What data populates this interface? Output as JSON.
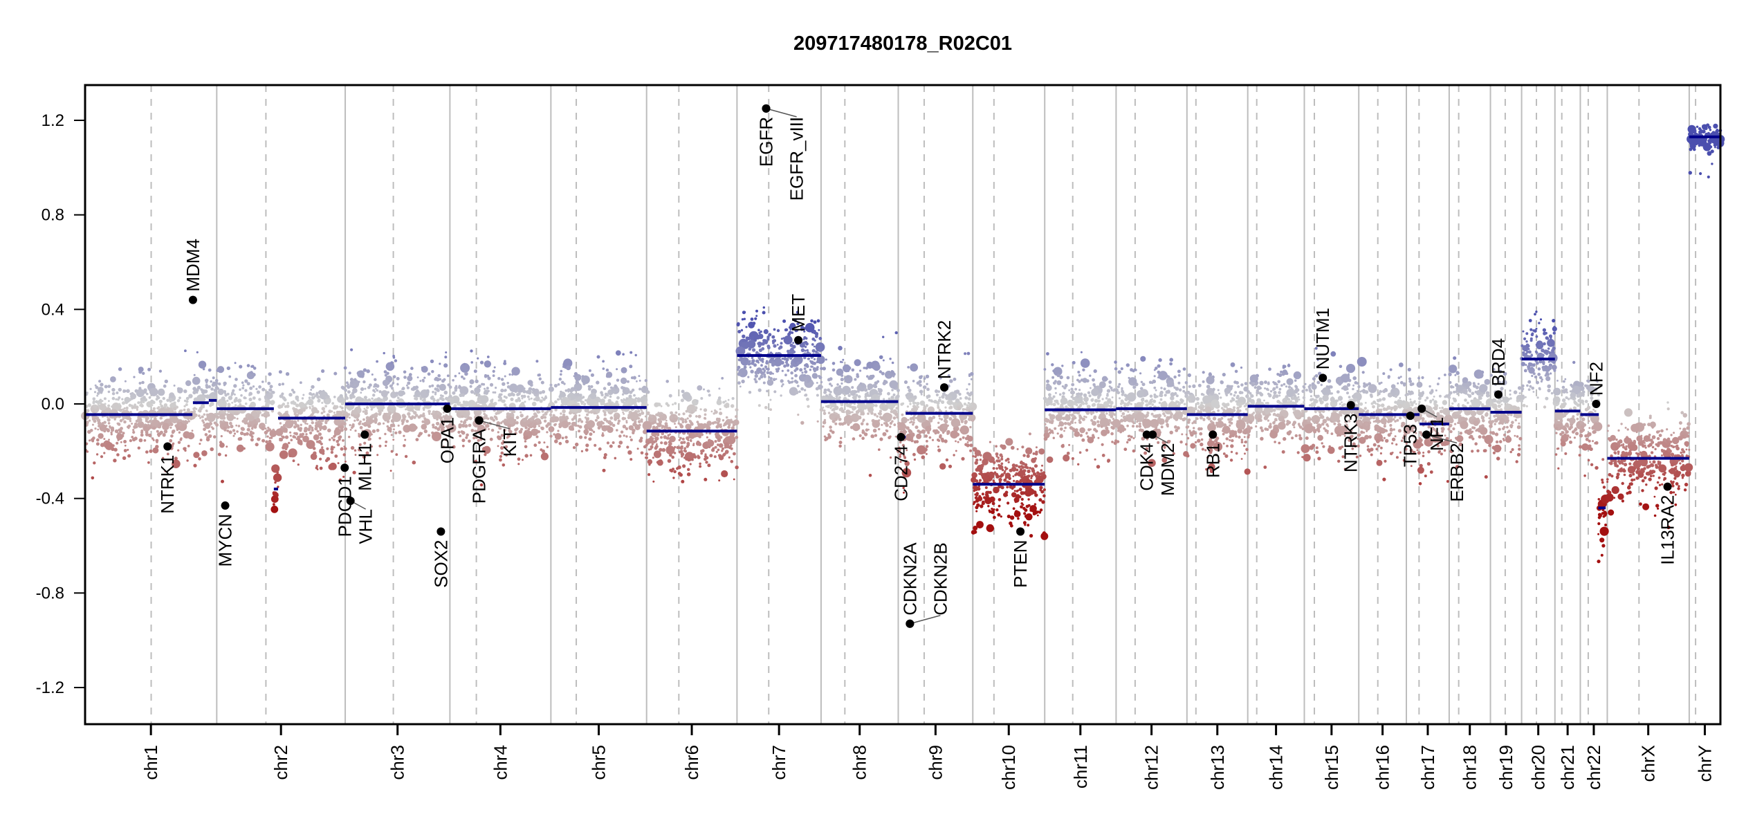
{
  "chart_data": {
    "type": "scatter",
    "title": "209717480178_R02C01",
    "xlabel": "",
    "ylabel": "",
    "ylim": [
      -1.35,
      1.35
    ],
    "yticks": [
      {
        "value": 1.2,
        "label": "1.2"
      },
      {
        "value": 0.8,
        "label": "0.8"
      },
      {
        "value": 0.4,
        "label": "0.4"
      },
      {
        "value": 0.0,
        "label": "0.0"
      },
      {
        "value": -0.4,
        "label": "-0.4"
      },
      {
        "value": -0.8,
        "label": "-0.8"
      },
      {
        "value": -1.2,
        "label": "-1.2"
      }
    ],
    "grid": false,
    "x_units": "Mb (genomic position within chromosome)",
    "chromosomes": [
      {
        "name": "chr1",
        "length": 249,
        "centromere": 125
      },
      {
        "name": "chr2",
        "length": 243,
        "centromere": 93
      },
      {
        "name": "chr3",
        "length": 198,
        "centromere": 91
      },
      {
        "name": "chr4",
        "length": 191,
        "centromere": 50
      },
      {
        "name": "chr5",
        "length": 181,
        "centromere": 48
      },
      {
        "name": "chr6",
        "length": 171,
        "centromere": 61
      },
      {
        "name": "chr7",
        "length": 159,
        "centromere": 60
      },
      {
        "name": "chr8",
        "length": 146,
        "centromere": 45
      },
      {
        "name": "chr9",
        "length": 141,
        "centromere": 49
      },
      {
        "name": "chr10",
        "length": 136,
        "centromere": 40
      },
      {
        "name": "chr11",
        "length": 135,
        "centromere": 53
      },
      {
        "name": "chr12",
        "length": 134,
        "centromere": 36
      },
      {
        "name": "chr13",
        "length": 115,
        "centromere": 17
      },
      {
        "name": "chr14",
        "length": 107,
        "centromere": 17
      },
      {
        "name": "chr15",
        "length": 103,
        "centromere": 19
      },
      {
        "name": "chr16",
        "length": 90,
        "centromere": 36
      },
      {
        "name": "chr17",
        "length": 81,
        "centromere": 24
      },
      {
        "name": "chr18",
        "length": 78,
        "centromere": 18
      },
      {
        "name": "chr19",
        "length": 59,
        "centromere": 28
      },
      {
        "name": "chr20",
        "length": 63,
        "centromere": 28
      },
      {
        "name": "chr21",
        "length": 48,
        "centromere": 13
      },
      {
        "name": "chr22",
        "length": 51,
        "centromere": 15
      },
      {
        "name": "chrX",
        "length": 155,
        "centromere": 60
      },
      {
        "name": "chrY",
        "length": 59,
        "centromere": 12
      }
    ],
    "segments": [
      {
        "chr": "chr1",
        "start": 0,
        "end": 203,
        "value": -0.045
      },
      {
        "chr": "chr1",
        "start": 204,
        "end": 234,
        "value": 0.005
      },
      {
        "chr": "chr1",
        "start": 234,
        "end": 249,
        "value": 0.015
      },
      {
        "chr": "chr2",
        "start": 0,
        "end": 108,
        "value": -0.02
      },
      {
        "chr": "chr2",
        "start": 108,
        "end": 116,
        "value": -0.36
      },
      {
        "chr": "chr2",
        "start": 116,
        "end": 243,
        "value": -0.06
      },
      {
        "chr": "chr3",
        "start": 0,
        "end": 198,
        "value": 0.0
      },
      {
        "chr": "chr4",
        "start": 0,
        "end": 191,
        "value": -0.02
      },
      {
        "chr": "chr5",
        "start": 0,
        "end": 181,
        "value": -0.015
      },
      {
        "chr": "chr6",
        "start": 0,
        "end": 171,
        "value": -0.115
      },
      {
        "chr": "chr7",
        "start": 0,
        "end": 159,
        "value": 0.205
      },
      {
        "chr": "chr8",
        "start": 0,
        "end": 146,
        "value": 0.01
      },
      {
        "chr": "chr9",
        "start": 0,
        "end": 14,
        "value": -0.14
      },
      {
        "chr": "chr9",
        "start": 14,
        "end": 141,
        "value": -0.04
      },
      {
        "chr": "chr10",
        "start": 0,
        "end": 136,
        "value": -0.34
      },
      {
        "chr": "chr11",
        "start": 0,
        "end": 135,
        "value": -0.025
      },
      {
        "chr": "chr12",
        "start": 0,
        "end": 134,
        "value": -0.02
      },
      {
        "chr": "chr13",
        "start": 0,
        "end": 115,
        "value": -0.045
      },
      {
        "chr": "chr14",
        "start": 0,
        "end": 107,
        "value": -0.01
      },
      {
        "chr": "chr15",
        "start": 0,
        "end": 103,
        "value": -0.02
      },
      {
        "chr": "chr16",
        "start": 0,
        "end": 90,
        "value": -0.045
      },
      {
        "chr": "chr17",
        "start": 0,
        "end": 25,
        "value": -0.045
      },
      {
        "chr": "chr17",
        "start": 25,
        "end": 81,
        "value": -0.085
      },
      {
        "chr": "chr18",
        "start": 0,
        "end": 78,
        "value": -0.02
      },
      {
        "chr": "chr19",
        "start": 0,
        "end": 59,
        "value": -0.035
      },
      {
        "chr": "chr20",
        "start": 0,
        "end": 63,
        "value": 0.19
      },
      {
        "chr": "chr21",
        "start": 0,
        "end": 48,
        "value": -0.03
      },
      {
        "chr": "chr22",
        "start": 0,
        "end": 14,
        "value": -0.045
      },
      {
        "chr": "chr22",
        "start": 14,
        "end": 35,
        "value": -0.045
      },
      {
        "chr": "chr22",
        "start": 34,
        "end": 48,
        "value": -0.44
      },
      {
        "chrX": true,
        "chr": "chrX",
        "start": 0,
        "end": 155,
        "value": -0.23
      },
      {
        "chr": "chrY",
        "start": 0,
        "end": 59,
        "value": 1.13
      }
    ],
    "genes": [
      {
        "name": "MDM4",
        "chr": "chr1",
        "pos": 204,
        "value": 0.44,
        "label_side": "above"
      },
      {
        "name": "NTRK1",
        "chr": "chr1",
        "pos": 156,
        "value": -0.18,
        "label_side": "below"
      },
      {
        "name": "MYCN",
        "chr": "chr2",
        "pos": 16,
        "value": -0.43,
        "label_side": "below"
      },
      {
        "name": "PDCD1",
        "chr": "chr2",
        "pos": 242,
        "value": -0.27,
        "label_side": "below"
      },
      {
        "name": "VHL",
        "chr": "chr3",
        "pos": 10,
        "value": -0.41,
        "label_side": "below"
      },
      {
        "name": "MLH1",
        "chr": "chr3",
        "pos": 37,
        "value": -0.13,
        "label_side": "below"
      },
      {
        "name": "SOX2",
        "chr": "chr3",
        "pos": 181,
        "value": -0.54,
        "label_side": "below"
      },
      {
        "name": "OPA1",
        "chr": "chr3",
        "pos": 193,
        "value": -0.02,
        "label_side": "below"
      },
      {
        "name": "PDGFRA",
        "chr": "chr4",
        "pos": 55,
        "value": -0.07,
        "label_side": "below"
      },
      {
        "name": "KIT",
        "chr": "chr4",
        "pos": 55.5,
        "value": -0.07,
        "label_side": "below"
      },
      {
        "name": "EGFR",
        "chr": "chr7",
        "pos": 55,
        "value": 1.25,
        "label_side": "below"
      },
      {
        "name": "EGFR_vIII",
        "chr": "chr7",
        "pos": 55.2,
        "value": 1.25,
        "label_side": "below"
      },
      {
        "name": "MET",
        "chr": "chr7",
        "pos": 116,
        "value": 0.27,
        "label_side": "above"
      },
      {
        "name": "CD274",
        "chr": "chr9",
        "pos": 5,
        "value": -0.14,
        "label_side": "below"
      },
      {
        "name": "CDKN2A",
        "chr": "chr9",
        "pos": 22,
        "value": -0.93,
        "label_side": "above"
      },
      {
        "name": "CDKN2B",
        "chr": "chr9",
        "pos": 22.1,
        "value": -0.93,
        "label_side": "above"
      },
      {
        "name": "NTRK2",
        "chr": "chr9",
        "pos": 87,
        "value": 0.07,
        "label_side": "above"
      },
      {
        "name": "PTEN",
        "chr": "chr10",
        "pos": 90,
        "value": -0.54,
        "label_side": "below"
      },
      {
        "name": "CDK4",
        "chr": "chr12",
        "pos": 58,
        "value": -0.13,
        "label_side": "below"
      },
      {
        "name": "MDM2",
        "chr": "chr12",
        "pos": 69,
        "value": -0.13,
        "label_side": "below"
      },
      {
        "name": "RB1",
        "chr": "chr13",
        "pos": 49,
        "value": -0.13,
        "label_side": "below"
      },
      {
        "name": "NUTM1",
        "chr": "chr15",
        "pos": 35,
        "value": 0.11,
        "label_side": "above"
      },
      {
        "name": "NTRK3",
        "chr": "chr15",
        "pos": 88,
        "value": -0.005,
        "label_side": "below"
      },
      {
        "name": "TP53",
        "chr": "chr17",
        "pos": 7.5,
        "value": -0.05,
        "label_side": "below"
      },
      {
        "name": "NF1",
        "chr": "chr17",
        "pos": 29,
        "value": -0.02,
        "label_side": "below"
      },
      {
        "name": "ERBB2",
        "chr": "chr17",
        "pos": 38,
        "value": -0.13,
        "label_side": "below"
      },
      {
        "name": "BRD4",
        "chr": "chr19",
        "pos": 15,
        "value": 0.04,
        "label_side": "above"
      },
      {
        "name": "NF2",
        "chr": "chr22",
        "pos": 30,
        "value": 0.0,
        "label_side": "above"
      },
      {
        "name": "IL13RA2",
        "chr": "chrX",
        "pos": 114,
        "value": -0.35,
        "label_side": "below"
      }
    ],
    "colors": {
      "segment": "#00008b",
      "gain": "#4b4fae",
      "neutral": "#cfcfcf",
      "loss": "#a30f0f",
      "gene_marker": "#000000",
      "chrom_border": "#bdbdbd",
      "centromere": "#bdbdbd"
    }
  }
}
